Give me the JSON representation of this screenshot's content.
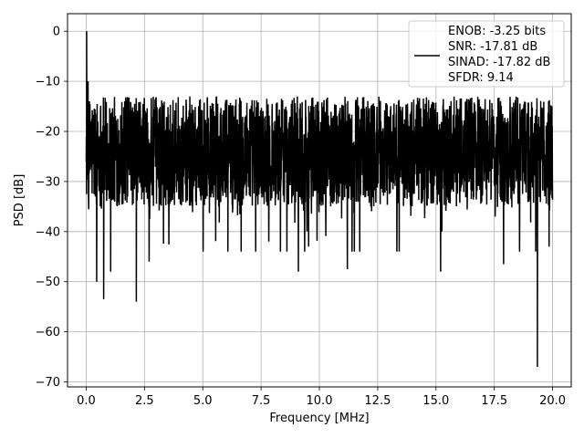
{
  "chart_data": {
    "type": "line",
    "title": "",
    "xlabel": "Frequency [MHz]",
    "ylabel": "PSD [dB]",
    "xlim": [
      -0.8,
      20.8
    ],
    "ylim": [
      -71,
      3.5
    ],
    "xticks": [
      0.0,
      2.5,
      5.0,
      7.5,
      10.0,
      12.5,
      15.0,
      17.5,
      20.0
    ],
    "xtick_labels": [
      "0.0",
      "2.5",
      "5.0",
      "7.5",
      "10.0",
      "12.5",
      "15.0",
      "17.5",
      "20.0"
    ],
    "yticks": [
      0,
      -10,
      -20,
      -30,
      -40,
      -50,
      -60,
      -70
    ],
    "ytick_labels": [
      "0",
      "−10",
      "−20",
      "−30",
      "−40",
      "−50",
      "−60",
      "−70"
    ],
    "grid": true,
    "legend_position": "top-right",
    "series": [
      {
        "name": "",
        "color": "#000000",
        "description": "",
        "x_range": [
          0,
          20
        ],
        "points": [
          [
            0.0,
            -26
          ],
          [
            0.02,
            0
          ],
          [
            0.05,
            -20
          ],
          [
            0.08,
            -10
          ],
          [
            0.12,
            -22
          ],
          [
            0.2,
            -18
          ],
          [
            0.45,
            -50
          ],
          [
            0.75,
            -53.5
          ],
          [
            1.05,
            -48
          ],
          [
            2.15,
            -54
          ],
          [
            2.7,
            -46
          ],
          [
            9.1,
            -48
          ],
          [
            11.2,
            -47.5
          ],
          [
            15.2,
            -48
          ],
          [
            17.9,
            -46.5
          ],
          [
            19.35,
            -67
          ],
          [
            19.85,
            -43
          ]
        ]
      }
    ],
    "legend_entries": [
      "ENOB: -3.25 bits",
      "SNR: -17.81 dB",
      "SINAD: -17.82 dB",
      "SFDR: 9.14"
    ]
  }
}
